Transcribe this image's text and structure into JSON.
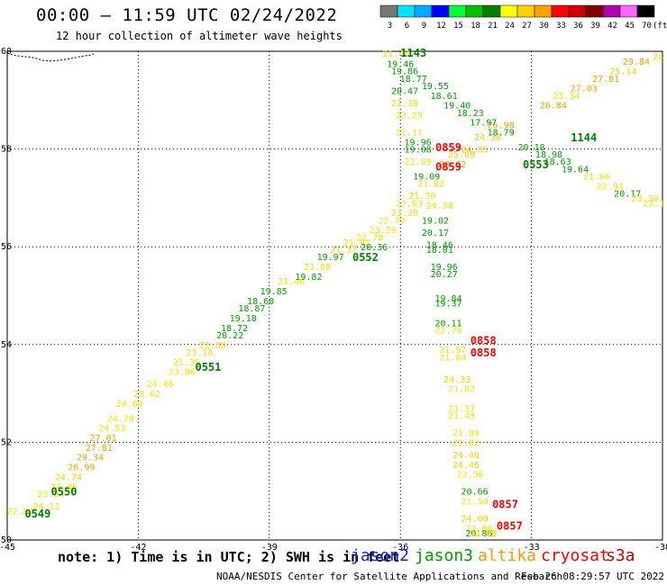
{
  "header": {
    "title": "00:00 – 11:59 UTC 02/24/2022",
    "subtitle": "12 hour collection of altimeter wave heights"
  },
  "color_scale": {
    "labels": [
      "3",
      "6",
      "9",
      "12",
      "15",
      "18",
      "21",
      "24",
      "27",
      "30",
      "33",
      "36",
      "39",
      "42",
      "45",
      "70"
    ],
    "unit": "(ft)",
    "colors": [
      "#777777",
      "#00e5ff",
      "#00aaff",
      "#0000ff",
      "#00ff33",
      "#00c000",
      "#008000",
      "#ffff00",
      "#ffd000",
      "#ffa000",
      "#ff0000",
      "#cc0000",
      "#800000",
      "#b000b0",
      "#ff66ff",
      "#000000"
    ]
  },
  "footer": {
    "note": "note: 1) Time is in UTC; 2) SWH is in feet",
    "credit": "NOAA/NESDIS Center for Satellite Applications and Research",
    "timestamp": "Feb 26 08:29:57 UTC 2022"
  },
  "satellites": [
    {
      "name": "jason2",
      "color": "#1a1aff"
    },
    {
      "name": "jason3",
      "color": "#00a000"
    },
    {
      "name": "altika",
      "color": "#ff9900"
    },
    {
      "name": "cryosat",
      "color": "#ff0000"
    },
    {
      "name": "s3a",
      "color": "#cc0000"
    }
  ],
  "chart_data": {
    "type": "scatter",
    "xlim": [
      -45,
      -30
    ],
    "ylim": [
      50,
      60
    ],
    "x_ticks": [
      "-45",
      "-42",
      "-39",
      "-36",
      "-33",
      "-30"
    ],
    "y_ticks": [
      "50",
      "52",
      "54",
      "56",
      "58",
      "60"
    ],
    "y_tick_values": [
      50,
      52,
      54,
      56,
      58,
      60
    ],
    "grid": true,
    "tracks": [
      {
        "satellite": "jason3",
        "pass_labels": [
          "0549",
          "0550",
          "0551",
          "0552",
          "0553"
        ]
      },
      {
        "satellite": "s3a",
        "pass_labels": [
          "0857",
          "0857",
          "0858",
          "0858",
          "0859",
          "0859"
        ]
      },
      {
        "satellite": "jason3",
        "pass_labels": [
          "1143",
          "1144"
        ]
      }
    ],
    "points": [
      {
        "x": -44.7,
        "y": 50.6,
        "v": "22.84",
        "c": "#ffe000"
      },
      {
        "x": -44.1,
        "y": 50.7,
        "v": "24.11",
        "c": "#ffe000"
      },
      {
        "x": -44.0,
        "y": 50.95,
        "v": "23.54",
        "c": "#ffe000"
      },
      {
        "x": -43.7,
        "y": 51.1,
        "v": "24.05",
        "c": "#ffe000"
      },
      {
        "x": -43.6,
        "y": 51.3,
        "v": "24.74",
        "c": "#ffcc00"
      },
      {
        "x": -43.3,
        "y": 51.5,
        "v": "26.99",
        "c": "#ffa000"
      },
      {
        "x": -43.1,
        "y": 51.7,
        "v": "29.34",
        "c": "#ffa000"
      },
      {
        "x": -42.9,
        "y": 51.9,
        "v": "27.81",
        "c": "#ffa000"
      },
      {
        "x": -42.8,
        "y": 52.1,
        "v": "27.01",
        "c": "#ffa000"
      },
      {
        "x": -42.6,
        "y": 52.3,
        "v": "24.53",
        "c": "#ffe000"
      },
      {
        "x": -42.4,
        "y": 52.5,
        "v": "24.70",
        "c": "#ffe000"
      },
      {
        "x": -42.2,
        "y": 52.8,
        "v": "24.64",
        "c": "#ffe000"
      },
      {
        "x": -41.8,
        "y": 53.0,
        "v": "23.62",
        "c": "#ffe000"
      },
      {
        "x": -41.5,
        "y": 53.2,
        "v": "24.46",
        "c": "#ffe000"
      },
      {
        "x": -41.0,
        "y": 53.45,
        "v": "23.86",
        "c": "#ffe000"
      },
      {
        "x": -40.9,
        "y": 53.65,
        "v": "21.36",
        "c": "#ffe000"
      },
      {
        "x": -40.6,
        "y": 53.85,
        "v": "23.18",
        "c": "#ffe000"
      },
      {
        "x": -40.3,
        "y": 54.0,
        "v": "21.80",
        "c": "#ffe000"
      },
      {
        "x": -39.9,
        "y": 54.2,
        "v": "20.22",
        "c": "#00a000"
      },
      {
        "x": -39.8,
        "y": 54.35,
        "v": "18.72",
        "c": "#00a000"
      },
      {
        "x": -39.6,
        "y": 54.55,
        "v": "19.18",
        "c": "#00a000"
      },
      {
        "x": -39.4,
        "y": 54.75,
        "v": "18.87",
        "c": "#00a000"
      },
      {
        "x": -39.2,
        "y": 54.9,
        "v": "18.60",
        "c": "#00a000"
      },
      {
        "x": -38.9,
        "y": 55.1,
        "v": "19.85",
        "c": "#00a000"
      },
      {
        "x": -38.5,
        "y": 55.3,
        "v": "21.46",
        "c": "#ffe000"
      },
      {
        "x": -38.1,
        "y": 55.4,
        "v": "19.82",
        "c": "#00a000"
      },
      {
        "x": -37.9,
        "y": 55.6,
        "v": "21.60",
        "c": "#ffe000"
      },
      {
        "x": -37.6,
        "y": 55.8,
        "v": "19.97",
        "c": "#00a000"
      },
      {
        "x": -37.3,
        "y": 55.95,
        "v": "21.37",
        "c": "#ffe000"
      },
      {
        "x": -37.0,
        "y": 56.1,
        "v": "21.01",
        "c": "#ffe000"
      },
      {
        "x": -36.6,
        "y": 56.0,
        "v": "20.36",
        "c": "#00a000"
      },
      {
        "x": -36.7,
        "y": 56.2,
        "v": "22.78",
        "c": "#ffe000"
      },
      {
        "x": -36.4,
        "y": 56.35,
        "v": "23.29",
        "c": "#ffe000"
      },
      {
        "x": -36.2,
        "y": 56.55,
        "v": "22.79",
        "c": "#ffe000"
      },
      {
        "x": -35.9,
        "y": 56.7,
        "v": "23.28",
        "c": "#ffe000"
      },
      {
        "x": -35.8,
        "y": 56.9,
        "v": "22.63",
        "c": "#ffe000"
      },
      {
        "x": -35.5,
        "y": 57.05,
        "v": "21.30",
        "c": "#ffe000"
      },
      {
        "x": -35.3,
        "y": 57.3,
        "v": "21.83",
        "c": "#ffe000"
      },
      {
        "x": -34.8,
        "y": 57.7,
        "v": "26.62",
        "c": "#ffa000"
      },
      {
        "x": -34.6,
        "y": 57.9,
        "v": "25.09",
        "c": "#ffcc00"
      },
      {
        "x": -34.3,
        "y": 58.0,
        "v": "24.85",
        "c": "#ffcc00"
      },
      {
        "x": -34.0,
        "y": 58.25,
        "v": "24.36",
        "c": "#ffcc00"
      },
      {
        "x": -33.7,
        "y": 58.5,
        "v": "26.98",
        "c": "#ffa000"
      },
      {
        "x": -32.5,
        "y": 58.9,
        "v": "26.84",
        "c": "#ffa000"
      },
      {
        "x": -32.2,
        "y": 59.1,
        "v": "23.34",
        "c": "#ffe000"
      },
      {
        "x": -31.8,
        "y": 59.25,
        "v": "27.03",
        "c": "#ffa000"
      },
      {
        "x": -31.3,
        "y": 59.45,
        "v": "27.81",
        "c": "#ffa000"
      },
      {
        "x": -30.9,
        "y": 59.6,
        "v": "25.14",
        "c": "#ffcc00"
      },
      {
        "x": -30.6,
        "y": 59.8,
        "v": "29.84",
        "c": "#ffa000"
      },
      {
        "x": -30.1,
        "y": 59.9,
        "v": "24",
        "c": "#ffcc00"
      },
      {
        "x": -36.1,
        "y": 60.0,
        "v": "21.43",
        "c": "#ffe000"
      },
      {
        "x": -36.0,
        "y": 59.75,
        "v": "19.46",
        "c": "#00a000"
      },
      {
        "x": -35.9,
        "y": 59.6,
        "v": "19.86",
        "c": "#00a000"
      },
      {
        "x": -35.7,
        "y": 59.45,
        "v": "18.77",
        "c": "#00a000"
      },
      {
        "x": -35.2,
        "y": 59.3,
        "v": "19.55",
        "c": "#00a000"
      },
      {
        "x": -35.9,
        "y": 59.2,
        "v": "20.47",
        "c": "#00a000"
      },
      {
        "x": -35.0,
        "y": 59.1,
        "v": "18.61",
        "c": "#00a000"
      },
      {
        "x": -34.7,
        "y": 58.9,
        "v": "19.40",
        "c": "#00a000"
      },
      {
        "x": -34.4,
        "y": 58.75,
        "v": "18.23",
        "c": "#00a000"
      },
      {
        "x": -34.1,
        "y": 58.55,
        "v": "17.97",
        "c": "#00a000"
      },
      {
        "x": -33.7,
        "y": 58.35,
        "v": "18.79",
        "c": "#00a000"
      },
      {
        "x": -33.0,
        "y": 58.05,
        "v": "20.18",
        "c": "#00a000"
      },
      {
        "x": -32.6,
        "y": 57.9,
        "v": "18.98",
        "c": "#00a000"
      },
      {
        "x": -32.4,
        "y": 57.75,
        "v": "18.63",
        "c": "#00a000"
      },
      {
        "x": -32.0,
        "y": 57.6,
        "v": "19.64",
        "c": "#00a000"
      },
      {
        "x": -31.5,
        "y": 57.45,
        "v": "21.66",
        "c": "#ffe000"
      },
      {
        "x": -31.2,
        "y": 57.25,
        "v": "22.91",
        "c": "#ffe000"
      },
      {
        "x": -30.8,
        "y": 57.1,
        "v": "20.17",
        "c": "#00a000"
      },
      {
        "x": -30.4,
        "y": 57.0,
        "v": "23.38",
        "c": "#ffe000"
      },
      {
        "x": -30.2,
        "y": 56.9,
        "v": "22.1",
        "c": "#ffe000"
      },
      {
        "x": -35.9,
        "y": 58.95,
        "v": "21.30",
        "c": "#ffe000"
      },
      {
        "x": -35.8,
        "y": 58.7,
        "v": "22.23",
        "c": "#ffe000"
      },
      {
        "x": -35.8,
        "y": 58.35,
        "v": "21.11",
        "c": "#ffe000"
      },
      {
        "x": -35.6,
        "y": 58.15,
        "v": "19.96",
        "c": "#00a000"
      },
      {
        "x": -35.6,
        "y": 58.0,
        "v": "19.08",
        "c": "#00a000"
      },
      {
        "x": -35.6,
        "y": 57.75,
        "v": "22.69",
        "c": "#ffe000"
      },
      {
        "x": -35.4,
        "y": 57.45,
        "v": "19.09",
        "c": "#00a000"
      },
      {
        "x": -35.1,
        "y": 56.85,
        "v": "24.30",
        "c": "#ffe000"
      },
      {
        "x": -35.2,
        "y": 56.55,
        "v": "19.02",
        "c": "#00a000"
      },
      {
        "x": -35.2,
        "y": 56.3,
        "v": "20.17",
        "c": "#00a000"
      },
      {
        "x": -35.1,
        "y": 56.05,
        "v": "18.46",
        "c": "#00a000"
      },
      {
        "x": -35.1,
        "y": 55.95,
        "v": "18.01",
        "c": "#00a000"
      },
      {
        "x": -35.0,
        "y": 55.6,
        "v": "19.96",
        "c": "#00a000"
      },
      {
        "x": -35.0,
        "y": 55.45,
        "v": "20.27",
        "c": "#00a000"
      },
      {
        "x": -34.9,
        "y": 54.95,
        "v": "19.84",
        "c": "#00a000"
      },
      {
        "x": -34.9,
        "y": 54.85,
        "v": "19.37",
        "c": "#00a000"
      },
      {
        "x": -34.9,
        "y": 54.45,
        "v": "20.11",
        "c": "#00a000"
      },
      {
        "x": -34.9,
        "y": 54.3,
        "v": "22.79",
        "c": "#ffe000"
      },
      {
        "x": -34.8,
        "y": 53.9,
        "v": "21.97",
        "c": "#ffe000"
      },
      {
        "x": -34.8,
        "y": 53.75,
        "v": "21.84",
        "c": "#ffe000"
      },
      {
        "x": -34.7,
        "y": 53.3,
        "v": "24.33",
        "c": "#ffcc00"
      },
      {
        "x": -34.6,
        "y": 53.1,
        "v": "21.82",
        "c": "#ffe000"
      },
      {
        "x": -34.6,
        "y": 52.7,
        "v": "21.37",
        "c": "#ffe000"
      },
      {
        "x": -34.6,
        "y": 52.55,
        "v": "21.43",
        "c": "#ffe000"
      },
      {
        "x": -34.5,
        "y": 52.2,
        "v": "21.09",
        "c": "#ffe000"
      },
      {
        "x": -34.5,
        "y": 52.0,
        "v": "21.02",
        "c": "#ffe000"
      },
      {
        "x": -34.5,
        "y": 51.75,
        "v": "24.46",
        "c": "#ffcc00"
      },
      {
        "x": -34.5,
        "y": 51.55,
        "v": "24.46",
        "c": "#ffcc00"
      },
      {
        "x": -34.4,
        "y": 51.35,
        "v": "22.56",
        "c": "#ffe000"
      },
      {
        "x": -34.3,
        "y": 51.0,
        "v": "20.66",
        "c": "#00a000"
      },
      {
        "x": -34.3,
        "y": 50.8,
        "v": "21.50",
        "c": "#ffe000"
      },
      {
        "x": -34.3,
        "y": 50.45,
        "v": "24.00",
        "c": "#ffcc00"
      },
      {
        "x": -34.2,
        "y": 50.25,
        "v": "22.86",
        "c": "#ffe000"
      },
      {
        "x": -34.2,
        "y": 50.1,
        "v": "20.86",
        "c": "#00a000"
      },
      {
        "x": -34.1,
        "y": 49.7,
        "v": "21.75",
        "c": "#ffe000"
      },
      {
        "x": -34.1,
        "y": 49.55,
        "v": "23.89",
        "c": "#ffe000"
      }
    ],
    "labels": [
      {
        "x": -44.3,
        "y": 50.55,
        "v": "0549",
        "c": "#008000"
      },
      {
        "x": -43.7,
        "y": 51.0,
        "v": "0550",
        "c": "#008000"
      },
      {
        "x": -40.4,
        "y": 53.55,
        "v": "0551",
        "c": "#008000"
      },
      {
        "x": -36.8,
        "y": 55.8,
        "v": "0552",
        "c": "#008000"
      },
      {
        "x": -32.9,
        "y": 57.7,
        "v": "0553",
        "c": "#008000"
      },
      {
        "x": -34.9,
        "y": 58.05,
        "v": "0859",
        "c": "#ff0000"
      },
      {
        "x": -34.9,
        "y": 57.65,
        "v": "0859",
        "c": "#ff0000"
      },
      {
        "x": -34.1,
        "y": 54.1,
        "v": "0858",
        "c": "#ff0000"
      },
      {
        "x": -34.1,
        "y": 53.85,
        "v": "0858",
        "c": "#ff0000"
      },
      {
        "x": -33.6,
        "y": 50.75,
        "v": "0857",
        "c": "#ff0000"
      },
      {
        "x": -33.5,
        "y": 50.3,
        "v": "0857",
        "c": "#ff0000"
      },
      {
        "x": -35.7,
        "y": 60.0,
        "v": "1143",
        "c": "#008000"
      },
      {
        "x": -31.8,
        "y": 58.25,
        "v": "1144",
        "c": "#008000"
      }
    ]
  }
}
